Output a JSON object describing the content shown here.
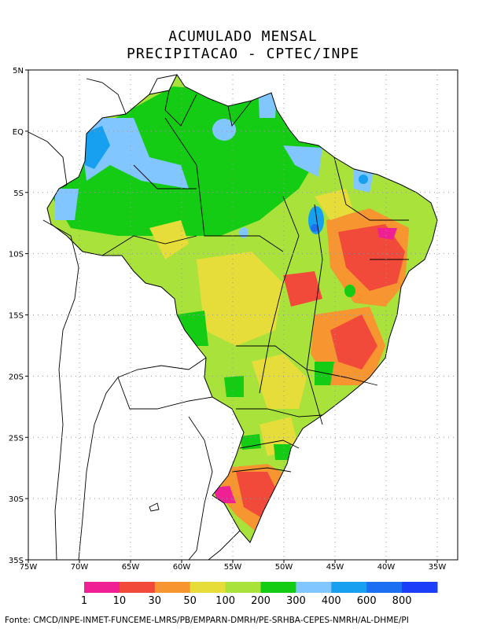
{
  "title_line1": "ACUMULADO MENSAL",
  "title_line2": "PRECIPITACAO - CPTEC/INPE",
  "axes": {
    "lat_labels": [
      "5N",
      "EQ",
      "5S",
      "10S",
      "15S",
      "20S",
      "25S",
      "30S",
      "35S"
    ],
    "lon_labels": [
      "75W",
      "70W",
      "65W",
      "60W",
      "55W",
      "50W",
      "45W",
      "40W",
      "35W"
    ],
    "lat_range": [
      5,
      -35
    ],
    "lon_range": [
      -75,
      -33
    ]
  },
  "legend": {
    "colors": [
      "#ef1f94",
      "#f14a3a",
      "#f79530",
      "#e6dd3a",
      "#a8e23a",
      "#13cc13",
      "#82c6ff",
      "#18a0f0",
      "#1c6ff0",
      "#1b3ff8"
    ],
    "labels": [
      "1",
      "10",
      "30",
      "50",
      "100",
      "200",
      "300",
      "400",
      "600",
      "800"
    ]
  },
  "source": "Fonte: CMCD/INPE-INMET-FUNCEME-LMRS/PB/EMPARN-DMRH/PE-SRHBA-CEPES-NMRH/AL-DHME/PI"
}
